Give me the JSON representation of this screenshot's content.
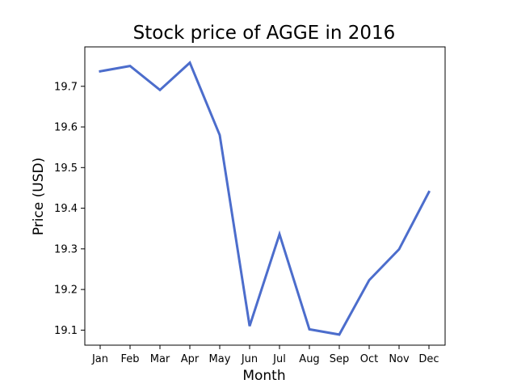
{
  "chart_data": {
    "type": "line",
    "title": "Stock price of AGGE in 2016",
    "xlabel": "Month",
    "ylabel": "Price (USD)",
    "categories": [
      "Jan",
      "Feb",
      "Mar",
      "Apr",
      "May",
      "Jun",
      "Jul",
      "Aug",
      "Sep",
      "Oct",
      "Nov",
      "Dec"
    ],
    "series": [
      {
        "values": [
          19.737,
          19.75,
          19.691,
          19.758,
          19.58,
          19.11,
          19.336,
          19.102,
          19.089,
          19.223,
          19.299,
          19.44
        ],
        "color": "#4c6dcc"
      }
    ],
    "ylim": [
      19.063,
      19.797
    ],
    "yticks": [
      "19.1",
      "19.2",
      "19.3",
      "19.4",
      "19.5",
      "19.6",
      "19.7"
    ],
    "grid": false,
    "legend": "none"
  }
}
